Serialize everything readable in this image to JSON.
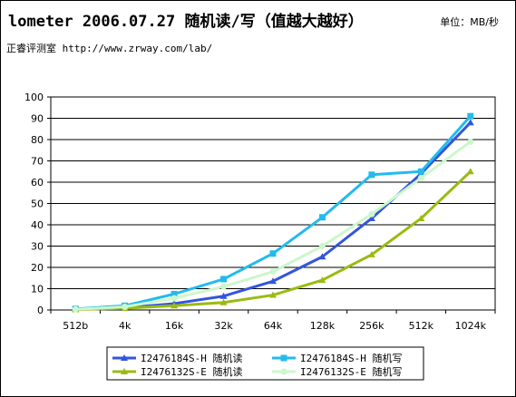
{
  "header": {
    "title": "lometer 2006.07.27 随机读/写（值越大越好）",
    "unit": "单位：MB/秒",
    "source": "正睿评测室 http://www.zrway.com/lab/"
  },
  "chart_data": {
    "type": "line",
    "title": "lometer 2006.07.27 随机读/写（值越大越好）",
    "unit": "MB/秒",
    "categories": [
      "512b",
      "4k",
      "16k",
      "32k",
      "64k",
      "128k",
      "256k",
      "512k",
      "1024k"
    ],
    "ylim": [
      0,
      100
    ],
    "yticks": [
      0,
      10,
      20,
      30,
      40,
      50,
      60,
      70,
      80,
      90,
      100
    ],
    "grid": true,
    "legend_position": "bottom",
    "series": [
      {
        "name": "I2476184S-H 随机读",
        "color": "#3355dd",
        "marker": "triangle",
        "values": [
          0.3,
          1,
          3,
          6.5,
          13.5,
          25,
          43,
          64,
          88
        ]
      },
      {
        "name": "I2476184S-H 随机写",
        "color": "#22bbee",
        "marker": "square",
        "values": [
          0.5,
          2,
          7.5,
          14.5,
          26.5,
          43.5,
          63.5,
          65,
          91
        ]
      },
      {
        "name": "I2476132S-E 随机读",
        "color": "#99bb11",
        "marker": "triangle",
        "values": [
          0.2,
          0.8,
          2,
          3.5,
          7,
          14,
          26,
          43,
          65
        ]
      },
      {
        "name": "I2476132S-E 随机写",
        "color": "#ccf7cc",
        "marker": "circle",
        "values": [
          0.3,
          1.5,
          5.5,
          11,
          18,
          30,
          45,
          62,
          79
        ]
      }
    ]
  }
}
